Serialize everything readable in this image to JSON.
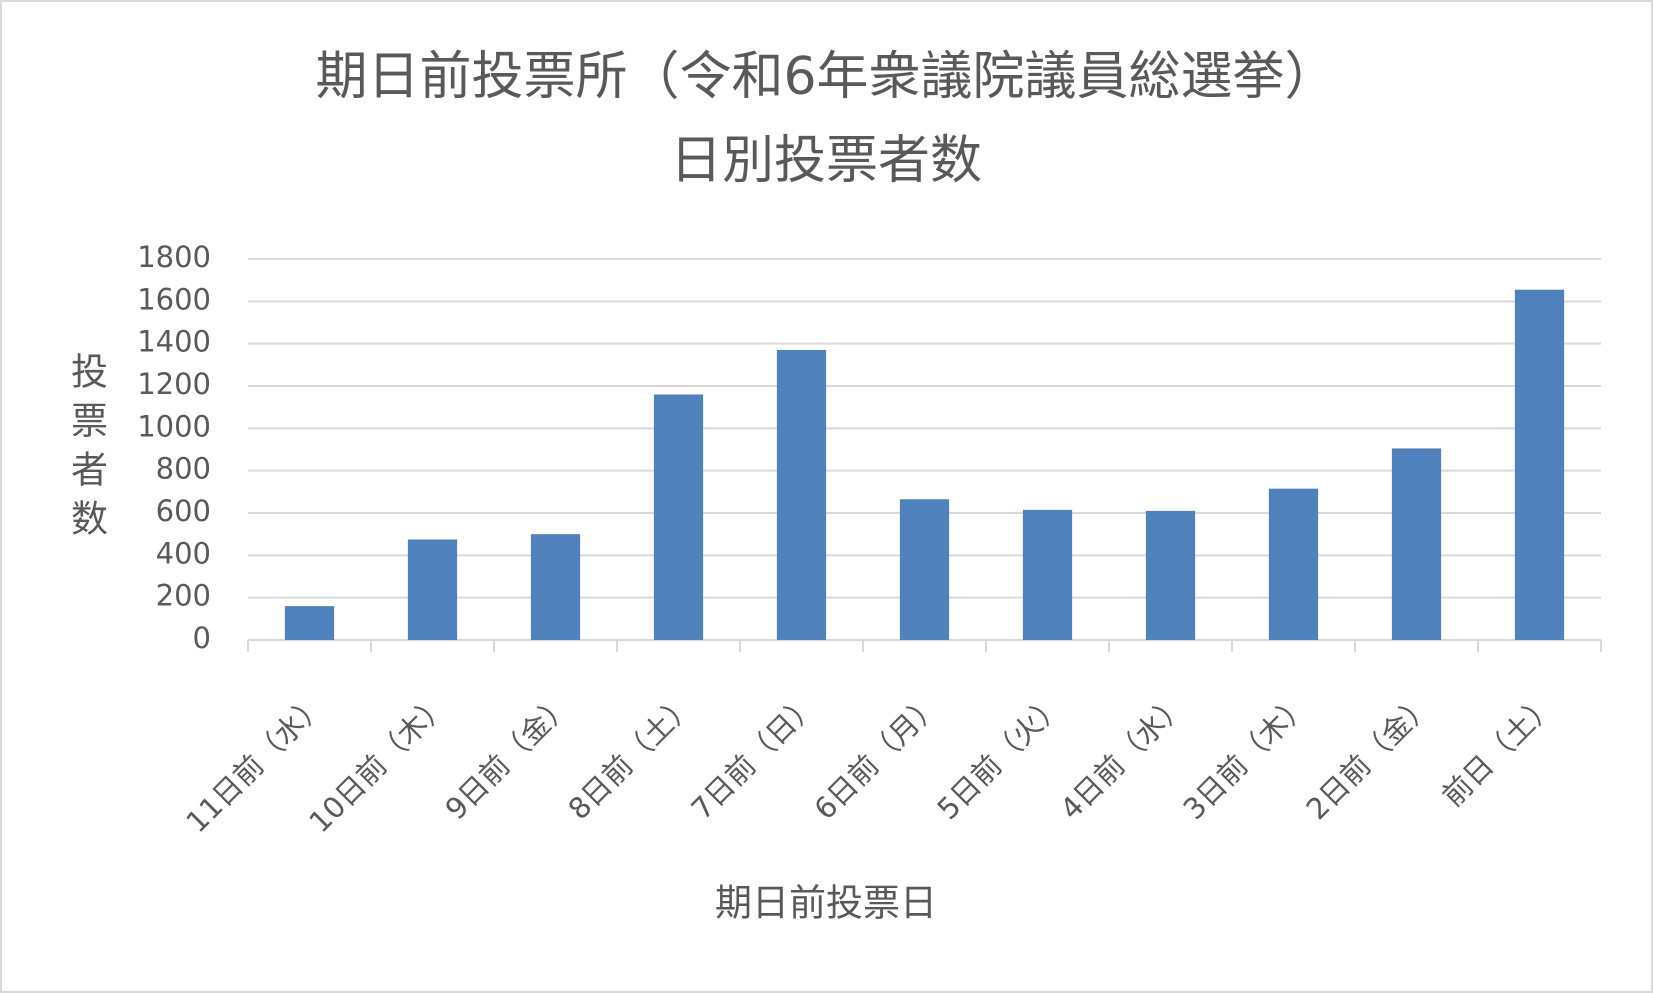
{
  "chart_data": {
    "type": "bar",
    "title": [
      "期日前投票所（令和6年衆議院議員総選挙）",
      "日別投票者数"
    ],
    "x_label": "期日前投票日",
    "y_label": "投票者数",
    "categories": [
      "11日前（水）",
      "10日前（木）",
      "9日前（金）",
      "8日前（土）",
      "7日前（日）",
      "6日前（月）",
      "5日前（火）",
      "4日前（水）",
      "3日前（木）",
      "2日前（金）",
      "前日（土）"
    ],
    "values": [
      160,
      475,
      500,
      1160,
      1370,
      665,
      615,
      610,
      715,
      905,
      1655
    ],
    "color": "#4f81bd",
    "ylim": [
      0,
      1800
    ],
    "yticks": [
      0,
      200,
      400,
      600,
      800,
      1000,
      1200,
      1400,
      1600,
      1800
    ],
    "grid": true
  }
}
